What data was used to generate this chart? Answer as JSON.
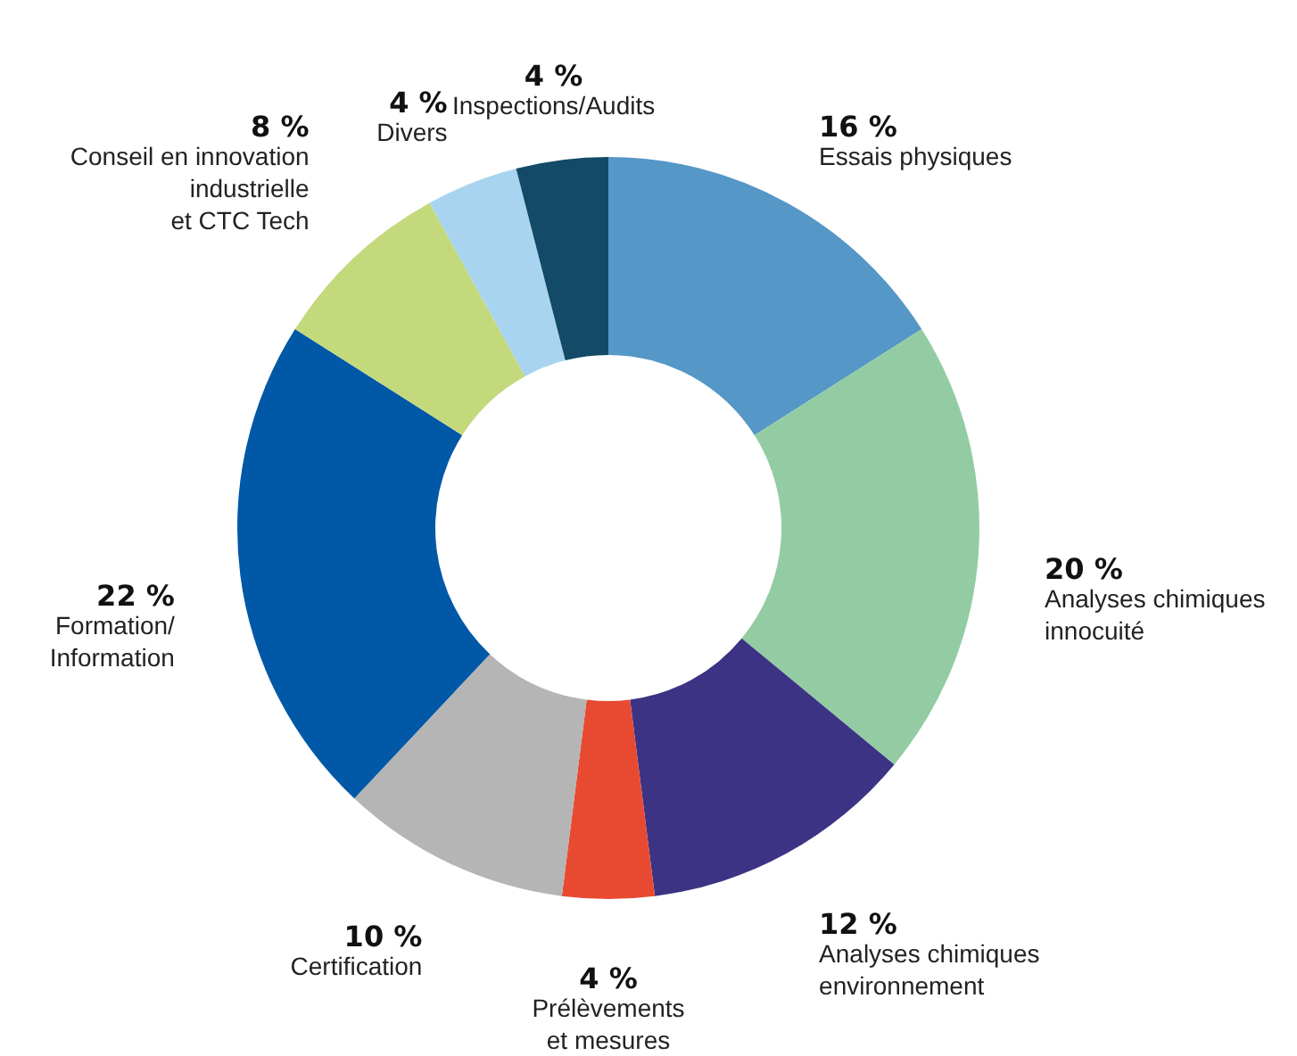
{
  "chart_data": {
    "type": "donut",
    "categories": [
      "Essais physiques",
      "Analyses chimiques\ninnocuité",
      "Analyses chimiques\nenvironnement",
      "Prélèvements\net mesures",
      "Certification",
      "Formation/\nInformation",
      "Conseil en innovation\nindustrielle\net CTC Tech",
      "Divers",
      "Inspections/Audits"
    ],
    "values": [
      16,
      20,
      12,
      4,
      10,
      22,
      8,
      4,
      4
    ],
    "value_labels": [
      "16 %",
      "20 %",
      "12 %",
      "4 %",
      "10 %",
      "22 %",
      "8 %",
      "4 %",
      "4 %"
    ],
    "colors": [
      "#5597c6",
      "#93cca3",
      "#3d3384",
      "#e84a31",
      "#b5b5b5",
      "#0058a6",
      "#c4d97c",
      "#a8d4ef",
      "#124a67"
    ]
  }
}
